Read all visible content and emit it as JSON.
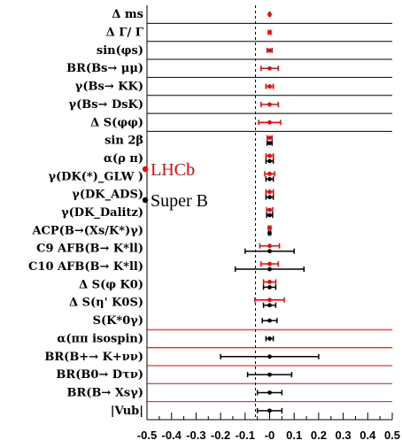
{
  "chart_data": {
    "type": "scatter",
    "title": "",
    "xlabel": "",
    "ylabel": "",
    "xlim": [
      -0.5,
      0.5
    ],
    "xticks": [
      -0.5,
      -0.4,
      -0.3,
      -0.2,
      -0.1,
      0,
      0.1,
      0.2,
      0.3,
      0.4,
      0.5
    ],
    "xtick_labels": [
      "-0.5",
      "-0.4",
      "-0.3",
      "-0.2",
      "-0.1",
      "-0",
      "0.1",
      "0.2",
      "0.3",
      "0.4",
      "0.5"
    ],
    "legend": {
      "placement": "left-center",
      "entries": [
        "LHCb",
        "Super B"
      ]
    },
    "colors": {
      "LHCb": "#ff0000",
      "Super B": "#000000",
      "row_line_black": "#000000",
      "row_line_red": "#ff0000"
    },
    "rows": [
      {
        "label": "Δ ms",
        "line": "black"
      },
      {
        "label": "Δ Γ/ Γ",
        "line": "black"
      },
      {
        "label": "sin(φs)",
        "line": "black"
      },
      {
        "label": "BR(Bs→ μμ)",
        "line": "black"
      },
      {
        "label": "γ(Bs→ KK)",
        "line": "black"
      },
      {
        "label": "γ(Bs→ DsK)",
        "line": "black"
      },
      {
        "label": "Δ S(φφ)",
        "line": "black"
      },
      {
        "label": "sin 2β",
        "line": "none"
      },
      {
        "label": "α(ρ π)",
        "line": "none"
      },
      {
        "label": "γ(DK(*)_GLW )",
        "line": "none"
      },
      {
        "label": "γ(DK_ADS)",
        "line": "none"
      },
      {
        "label": "γ(DK_Dalitz)",
        "line": "none"
      },
      {
        "label": "ACP(B→(Xs/K*)γ)",
        "line": "none"
      },
      {
        "label": "C9 AFB(B→ K*ll)",
        "line": "none"
      },
      {
        "label": "C10 AFB(B→ K*ll)",
        "line": "none"
      },
      {
        "label": "Δ S(φ K0)",
        "line": "none"
      },
      {
        "label": "Δ S(η' K0S)",
        "line": "none"
      },
      {
        "label": "S(K*0γ)",
        "line": "red"
      },
      {
        "label": "α(ππ isospin)",
        "line": "red"
      },
      {
        "label": "BR(B+→ K+νν)",
        "line": "red"
      },
      {
        "label": "BR(B0→ Dτν)",
        "line": "red"
      },
      {
        "label": "BR(B→ Xsγ)",
        "line": "red"
      },
      {
        "label": "|Vub|",
        "line": "red"
      }
    ],
    "series": [
      {
        "name": "LHCb",
        "x": [
          0,
          0,
          0,
          0,
          0,
          0,
          0,
          0,
          0,
          0,
          0,
          0,
          0,
          0,
          0,
          0,
          0,
          null,
          null,
          null,
          null,
          null,
          null
        ],
        "err": [
          0.002,
          0.005,
          0.01,
          0.035,
          0.015,
          0.035,
          0.045,
          0.01,
          0.015,
          0.02,
          0.015,
          0.012,
          0.005,
          0.04,
          0.035,
          0.025,
          0.06,
          null,
          null,
          null,
          null,
          null,
          null
        ]
      },
      {
        "name": "Super B",
        "x": [
          null,
          null,
          null,
          null,
          null,
          null,
          null,
          0,
          0,
          0,
          0,
          0,
          0,
          0,
          0,
          0,
          0,
          0,
          0,
          0,
          0,
          0,
          0
        ],
        "err": [
          null,
          null,
          null,
          null,
          null,
          null,
          null,
          0.01,
          0.015,
          0.015,
          0.015,
          0.012,
          0.004,
          0.1,
          0.14,
          0.025,
          0.025,
          0.03,
          0.015,
          0.2,
          0.09,
          0.05,
          0.05
        ]
      }
    ]
  }
}
